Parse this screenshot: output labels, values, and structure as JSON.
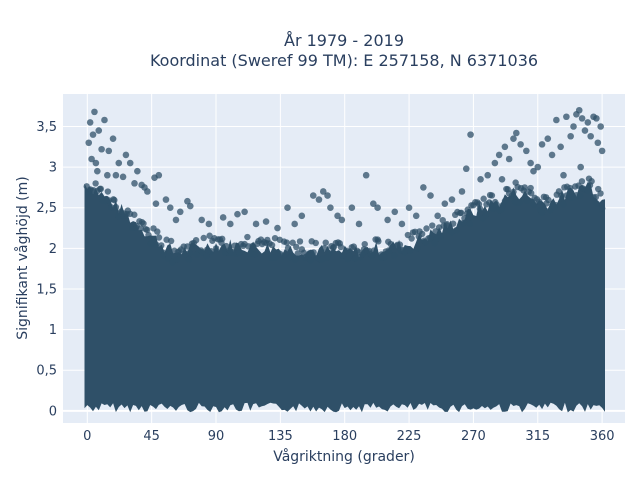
{
  "chart_data": {
    "type": "scatter",
    "title": [
      "År 1979 - 2019",
      "Koordinat (Sweref 99 TM): E 257158, N 6371036"
    ],
    "xlabel": "Vågriktning (grader)",
    "ylabel": "Signifikant våghöjd (m)",
    "xlim": [
      -17,
      376
    ],
    "ylim": [
      -0.15,
      3.9
    ],
    "xticks": [
      0,
      45,
      90,
      135,
      180,
      225,
      270,
      315,
      360
    ],
    "xtick_labels": [
      "0",
      "45",
      "90",
      "135",
      "180",
      "225",
      "270",
      "315",
      "360"
    ],
    "yticks": [
      0,
      0.5,
      1,
      1.5,
      2,
      2.5,
      3,
      3.5
    ],
    "ytick_labels": [
      "0",
      "0,5",
      "1",
      "1,5",
      "2",
      "2,5",
      "3",
      "3,5"
    ],
    "grid": true,
    "marker_color": "#2f5068",
    "marker_opacity": 0.75,
    "background_color": "#e5ecf6",
    "dense_min_height": 0.1,
    "dense_max_envelope": {
      "x": [
        0,
        15,
        45,
        60,
        90,
        135,
        180,
        225,
        250,
        270,
        290,
        300,
        320,
        340,
        350,
        360
      ],
      "y": [
        2.8,
        2.6,
        2.15,
        1.95,
        2.05,
        2.0,
        1.95,
        2.05,
        2.25,
        2.45,
        2.6,
        2.7,
        2.55,
        2.7,
        2.8,
        2.6
      ]
    },
    "points": [
      {
        "x": 5,
        "y": 3.68
      },
      {
        "x": 2,
        "y": 3.55
      },
      {
        "x": 4,
        "y": 3.4
      },
      {
        "x": 1,
        "y": 3.3
      },
      {
        "x": 12,
        "y": 3.58
      },
      {
        "x": 18,
        "y": 3.35
      },
      {
        "x": 8,
        "y": 3.45
      },
      {
        "x": 10,
        "y": 3.22
      },
      {
        "x": 3,
        "y": 3.1
      },
      {
        "x": 6,
        "y": 3.05
      },
      {
        "x": 7,
        "y": 2.95
      },
      {
        "x": 27,
        "y": 3.15
      },
      {
        "x": 15,
        "y": 3.2
      },
      {
        "x": 30,
        "y": 3.05
      },
      {
        "x": 22,
        "y": 3.05
      },
      {
        "x": 35,
        "y": 2.95
      },
      {
        "x": 20,
        "y": 2.9
      },
      {
        "x": 25,
        "y": 2.88
      },
      {
        "x": 38,
        "y": 2.78
      },
      {
        "x": 40,
        "y": 2.75
      },
      {
        "x": 47,
        "y": 2.87
      },
      {
        "x": 50,
        "y": 2.9
      },
      {
        "x": 42,
        "y": 2.7
      },
      {
        "x": 55,
        "y": 2.6
      },
      {
        "x": 65,
        "y": 2.45
      },
      {
        "x": 70,
        "y": 2.58
      },
      {
        "x": 72,
        "y": 2.52
      },
      {
        "x": 58,
        "y": 2.5
      },
      {
        "x": 80,
        "y": 2.35
      },
      {
        "x": 95,
        "y": 2.38
      },
      {
        "x": 105,
        "y": 2.42
      },
      {
        "x": 110,
        "y": 2.45
      },
      {
        "x": 100,
        "y": 2.3
      },
      {
        "x": 125,
        "y": 2.33
      },
      {
        "x": 140,
        "y": 2.5
      },
      {
        "x": 150,
        "y": 2.4
      },
      {
        "x": 158,
        "y": 2.65
      },
      {
        "x": 162,
        "y": 2.6
      },
      {
        "x": 165,
        "y": 2.7
      },
      {
        "x": 168,
        "y": 2.65
      },
      {
        "x": 170,
        "y": 2.5
      },
      {
        "x": 175,
        "y": 2.4
      },
      {
        "x": 185,
        "y": 2.5
      },
      {
        "x": 195,
        "y": 2.9
      },
      {
        "x": 200,
        "y": 2.55
      },
      {
        "x": 203,
        "y": 2.5
      },
      {
        "x": 210,
        "y": 2.35
      },
      {
        "x": 215,
        "y": 2.45
      },
      {
        "x": 225,
        "y": 2.5
      },
      {
        "x": 235,
        "y": 2.75
      },
      {
        "x": 240,
        "y": 2.65
      },
      {
        "x": 245,
        "y": 2.4
      },
      {
        "x": 250,
        "y": 2.55
      },
      {
        "x": 255,
        "y": 2.6
      },
      {
        "x": 262,
        "y": 2.7
      },
      {
        "x": 265,
        "y": 2.98
      },
      {
        "x": 268,
        "y": 3.4
      },
      {
        "x": 275,
        "y": 2.85
      },
      {
        "x": 280,
        "y": 2.9
      },
      {
        "x": 285,
        "y": 3.05
      },
      {
        "x": 288,
        "y": 3.15
      },
      {
        "x": 292,
        "y": 3.25
      },
      {
        "x": 295,
        "y": 3.1
      },
      {
        "x": 298,
        "y": 3.35
      },
      {
        "x": 300,
        "y": 3.42
      },
      {
        "x": 303,
        "y": 3.28
      },
      {
        "x": 307,
        "y": 3.2
      },
      {
        "x": 310,
        "y": 3.05
      },
      {
        "x": 315,
        "y": 3.0
      },
      {
        "x": 318,
        "y": 3.28
      },
      {
        "x": 322,
        "y": 3.35
      },
      {
        "x": 325,
        "y": 3.15
      },
      {
        "x": 328,
        "y": 3.58
      },
      {
        "x": 331,
        "y": 3.25
      },
      {
        "x": 335,
        "y": 3.62
      },
      {
        "x": 338,
        "y": 3.38
      },
      {
        "x": 340,
        "y": 3.5
      },
      {
        "x": 342,
        "y": 3.65
      },
      {
        "x": 344,
        "y": 3.7
      },
      {
        "x": 346,
        "y": 3.6
      },
      {
        "x": 348,
        "y": 3.45
      },
      {
        "x": 350,
        "y": 3.55
      },
      {
        "x": 352,
        "y": 3.38
      },
      {
        "x": 354,
        "y": 3.62
      },
      {
        "x": 356,
        "y": 3.6
      },
      {
        "x": 357,
        "y": 3.3
      },
      {
        "x": 359,
        "y": 3.5
      },
      {
        "x": 360,
        "y": 3.2
      },
      {
        "x": 312,
        "y": 2.95
      },
      {
        "x": 333,
        "y": 2.9
      },
      {
        "x": 345,
        "y": 3.0
      },
      {
        "x": 290,
        "y": 2.85
      },
      {
        "x": 14,
        "y": 2.9
      },
      {
        "x": 33,
        "y": 2.8
      },
      {
        "x": 48,
        "y": 2.55
      },
      {
        "x": 62,
        "y": 2.35
      },
      {
        "x": 85,
        "y": 2.3
      },
      {
        "x": 118,
        "y": 2.3
      },
      {
        "x": 133,
        "y": 2.25
      },
      {
        "x": 145,
        "y": 2.3
      },
      {
        "x": 178,
        "y": 2.35
      },
      {
        "x": 190,
        "y": 2.3
      },
      {
        "x": 220,
        "y": 2.3
      },
      {
        "x": 230,
        "y": 2.4
      }
    ]
  }
}
